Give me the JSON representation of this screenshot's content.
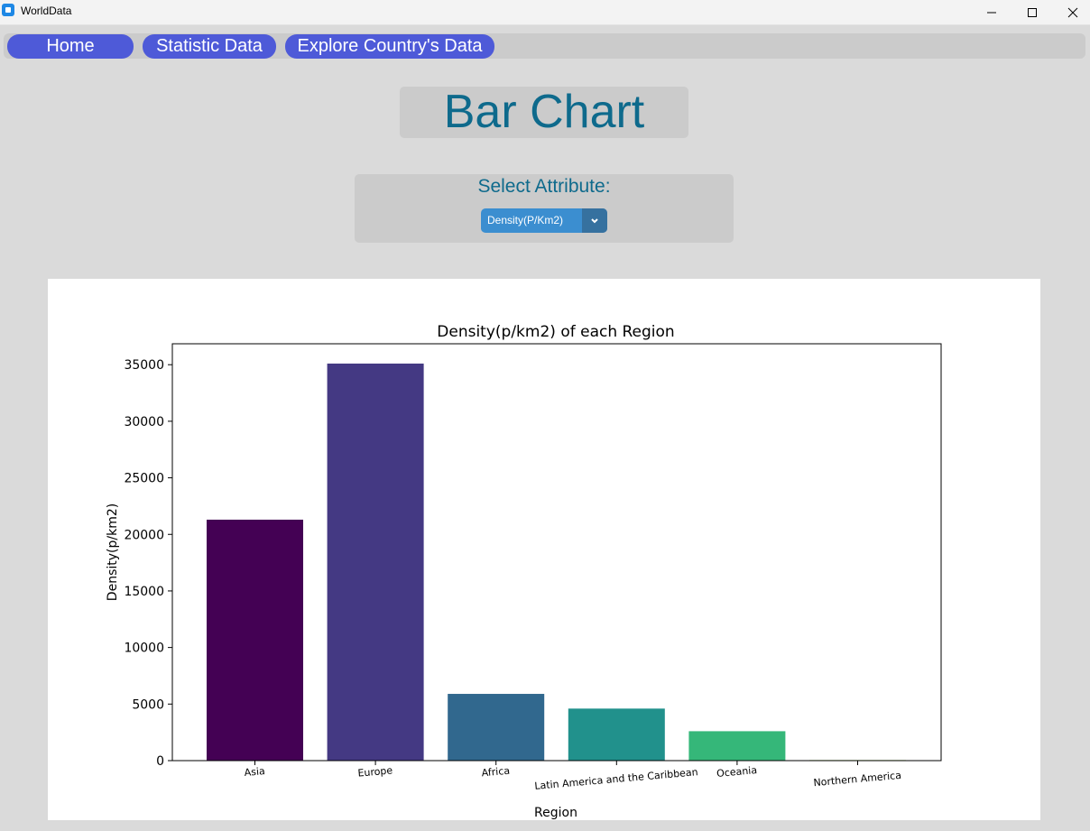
{
  "window": {
    "title": "WorldData",
    "icons": {
      "minimize": "minimize-icon",
      "maximize": "maximize-icon",
      "close": "close-icon"
    }
  },
  "nav": {
    "home": "Home",
    "statistic": "Statistic Data",
    "explore": "Explore Country's Data"
  },
  "heading": "Bar Chart",
  "attribute": {
    "label": "Select Attribute:",
    "selected": "Density(P/Km2)"
  },
  "colors": {
    "nav_button": "#4e5ad8",
    "heading_text": "#0e6a8c",
    "dropdown": "#3b8ed0"
  },
  "chart_data": {
    "type": "bar",
    "title": "Density(p/km2) of each Region",
    "xlabel": "Region",
    "ylabel": "Density(p/km2)",
    "categories": [
      "Asia",
      "Europe",
      "Africa",
      "Latin America and the Caribbean",
      "Oceania",
      "Northern America"
    ],
    "values": [
      21300,
      35100,
      5900,
      4600,
      2600,
      50
    ],
    "colors": [
      "#440154",
      "#443983",
      "#31688e",
      "#21918c",
      "#35b779",
      "#90d743"
    ],
    "yticks": [
      0,
      5000,
      10000,
      15000,
      20000,
      25000,
      30000,
      35000
    ],
    "ylim": [
      0,
      36850
    ],
    "grid": false
  }
}
